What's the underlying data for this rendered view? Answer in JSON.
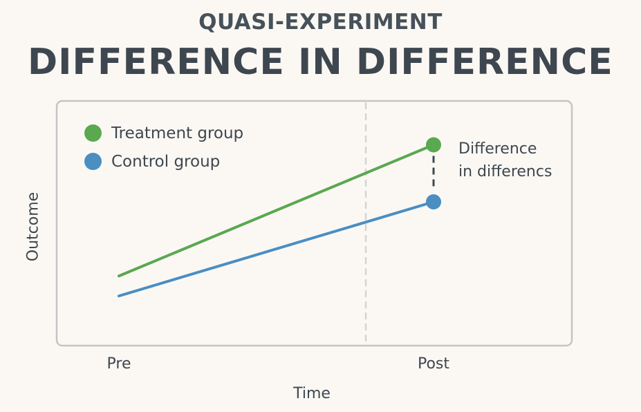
{
  "header": {
    "subtitle": "QUASI-EXPERIMENT",
    "title": "DIFFERENCE IN DIFFERENCE"
  },
  "chart_data": {
    "type": "line",
    "x": [
      "Pre",
      "Post"
    ],
    "series": [
      {
        "name": "Treatment group",
        "values": [
          2.2,
          6.8
        ],
        "color": "#5aa84f"
      },
      {
        "name": "Control group",
        "values": [
          1.5,
          4.8
        ],
        "color": "#4a8ec2"
      }
    ],
    "xlabel": "Time",
    "ylabel": "Outcome",
    "ylim": [
      0,
      8
    ],
    "grid": false,
    "legend": "top-left",
    "treatment_marker": "vertical dashed line between Pre and Post",
    "annotation": {
      "line1": "Difference",
      "line2": "in differencs"
    }
  }
}
